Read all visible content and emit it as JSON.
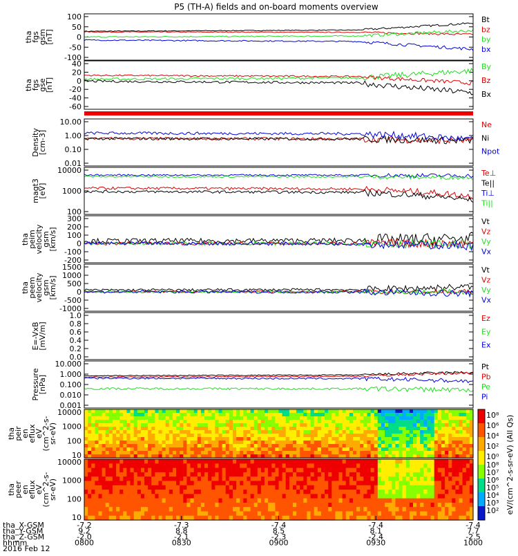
{
  "title": "P5 (TH-A) fields and on-board moments overview",
  "colors": {
    "black": "#000000",
    "red": "#dd0000",
    "green": "#22dd22",
    "blue": "#0000dd"
  },
  "chart_data": [
    {
      "type": "line",
      "ylabel_lines": [
        "tha",
        "fgs",
        "gsm",
        "[nT]"
      ],
      "yticks": [
        "100",
        "50",
        "0",
        "-50",
        "-100"
      ],
      "ylim": [
        -100,
        100
      ],
      "series": [
        {
          "name": "Bt",
          "color": "black",
          "start": 28,
          "end": 68,
          "noise": 2
        },
        {
          "name": "bz",
          "color": "red",
          "start": 25,
          "end": 12,
          "noise": 2
        },
        {
          "name": "by",
          "color": "green",
          "start": 0,
          "end": 32,
          "noise": 3
        },
        {
          "name": "bx",
          "color": "blue",
          "start": -15,
          "end": -60,
          "noise": 3
        }
      ]
    },
    {
      "type": "line",
      "ylabel_lines": [
        "tha",
        "fgs",
        "gse",
        "[nT]"
      ],
      "yticks": [
        "40",
        "20",
        "0",
        "-20",
        "-40",
        "-60"
      ],
      "ylim": [
        -70,
        40
      ],
      "series": [
        {
          "name": "By",
          "color": "green",
          "start": 0,
          "end": 22,
          "noise": 3
        },
        {
          "name": "Bz",
          "color": "red",
          "start": 10,
          "end": -10,
          "noise": 2
        },
        {
          "name": "Bx",
          "color": "black",
          "start": -5,
          "end": -35,
          "noise": 3
        }
      ]
    },
    {
      "type": "line",
      "log": true,
      "ylabel_lines": [
        "Density",
        "[cm-3]"
      ],
      "yticks": [
        "10.00",
        "1.00",
        "0.10",
        "0.01"
      ],
      "ylim": [
        0.01,
        10
      ],
      "series": [
        {
          "name": "Ne",
          "color": "red",
          "start": 0.6,
          "end": 0.4,
          "noise": 0.1
        },
        {
          "name": "Ni",
          "color": "black",
          "start": 0.6,
          "end": 0.4,
          "noise": 0.1
        },
        {
          "name": "Npot",
          "color": "blue",
          "start": 1.5,
          "end": 0.5,
          "noise": 0.1
        }
      ]
    },
    {
      "type": "line",
      "log": true,
      "ylabel_lines": [
        "magt3",
        "[eV]"
      ],
      "yticks": [
        "10000",
        "1000",
        "100"
      ],
      "ylim": [
        30,
        10000
      ],
      "series": [
        {
          "name": "Te⊥",
          "color": "red",
          "start": 800,
          "end": 250,
          "noise": 0.08
        },
        {
          "name": "Te||",
          "color": "black",
          "start": 500,
          "end": 150,
          "noise": 0.08
        },
        {
          "name": "Ti⊥",
          "color": "blue",
          "start": 5000,
          "end": 4500,
          "noise": 0.05
        },
        {
          "name": "Ti||",
          "color": "green",
          "start": 4000,
          "end": 3500,
          "noise": 0.05
        }
      ]
    },
    {
      "type": "line",
      "ylabel_lines": [
        "tha",
        "peim",
        "velocity",
        "gsm",
        "[km/s]"
      ],
      "yticks": [
        "300",
        "200",
        "100",
        "0",
        "-100",
        "-200"
      ],
      "ylim": [
        -200,
        300
      ],
      "series": [
        {
          "name": "Vt",
          "color": "black",
          "start": 30,
          "end": 60,
          "noise": 30
        },
        {
          "name": "Vz",
          "color": "red",
          "start": 0,
          "end": 0,
          "noise": 20
        },
        {
          "name": "Vy",
          "color": "green",
          "start": 0,
          "end": -10,
          "noise": 20
        },
        {
          "name": "Vx",
          "color": "blue",
          "start": 0,
          "end": -30,
          "noise": 20
        }
      ]
    },
    {
      "type": "line",
      "ylabel_lines": [
        "tha",
        "peem",
        "velocity",
        "gsm",
        "[km/s]"
      ],
      "yticks": [
        "1500",
        "1000",
        "500",
        "0",
        "-500",
        "-1000"
      ],
      "ylim": [
        -1000,
        1500
      ],
      "series": [
        {
          "name": "Vt",
          "color": "black",
          "start": 100,
          "end": 300,
          "noise": 80
        },
        {
          "name": "Vz",
          "color": "red",
          "start": 0,
          "end": 0,
          "noise": 60
        },
        {
          "name": "Vy",
          "color": "green",
          "start": 0,
          "end": 0,
          "noise": 60
        },
        {
          "name": "Vx",
          "color": "blue",
          "start": 0,
          "end": -100,
          "noise": 80
        }
      ]
    },
    {
      "type": "line",
      "ylabel_lines": [
        "E=-VxB",
        "[mV/m]"
      ],
      "yticks": [
        "1.0",
        "0.8",
        "0.6",
        "0.4",
        "0.2",
        "0.0"
      ],
      "ylim": [
        0,
        1
      ],
      "series": [
        {
          "name": "Ez",
          "color": "red"
        },
        {
          "name": "Ey",
          "color": "green"
        },
        {
          "name": "Ex",
          "color": "blue"
        }
      ]
    },
    {
      "type": "line",
      "log": true,
      "ylabel_lines": [
        "Pressure",
        "[nPa]"
      ],
      "yticks": [
        "10.000",
        "1.000",
        "0.100",
        "0.010",
        "0.001"
      ],
      "ylim": [
        0.001,
        10
      ],
      "series": [
        {
          "name": "Pt",
          "color": "black",
          "start": 0.7,
          "end": 1.5,
          "noise": 0.05
        },
        {
          "name": "Pb",
          "color": "red",
          "start": 0.5,
          "end": 1.3,
          "noise": 0.05
        },
        {
          "name": "Pe",
          "color": "green",
          "start": 0.04,
          "end": 0.03,
          "noise": 0.1
        },
        {
          "name": "Pi",
          "color": "blue",
          "start": 0.4,
          "end": 0.2,
          "noise": 0.08
        }
      ]
    },
    {
      "type": "heatmap",
      "ylabel_lines": [
        "tha",
        "peir",
        "en",
        "eflux",
        "eV",
        "(cm^2-s-",
        "sr-eV)"
      ],
      "yticks": [
        "10000",
        "1000",
        "100",
        "10"
      ]
    },
    {
      "type": "heatmap",
      "ylabel_lines": [
        "tha",
        "peer",
        "en",
        "eflux",
        "eV",
        "(cm^2-s-",
        "sr-eV)"
      ],
      "yticks": [
        "10000",
        "1000",
        "100",
        "10"
      ]
    }
  ],
  "colorbar": {
    "label": "eV/(cm^2-s-sr-eV) (All Qs)",
    "ticks_upper": [
      "10⁸",
      "10⁶",
      "10⁴",
      "10²",
      "10⁰"
    ],
    "ticks_lower": [
      "10⁸",
      "10⁷",
      "10⁶",
      "10⁵",
      "10⁴",
      "10³",
      "10²"
    ]
  },
  "xaxis": {
    "row_labels": [
      "tha_X-GSM",
      "tha_Y-GSM",
      "tha_Z-GSM",
      "hhmm",
      "2016 Feb 12"
    ],
    "columns": [
      {
        "x": "-7.2",
        "y": "9.2",
        "z": "-2.0",
        "t": "0800"
      },
      {
        "x": "-7.3",
        "y": "8.8",
        "z": "-2.1",
        "t": "0830"
      },
      {
        "x": "-7.4",
        "y": "8.5",
        "z": "-2.3",
        "t": "0900"
      },
      {
        "x": "-7.4",
        "y": "8.1",
        "z": "-2.4",
        "t": "0930"
      },
      {
        "x": "-7.4",
        "y": "7.7",
        "z": "-2.5",
        "t": "1000"
      }
    ]
  }
}
